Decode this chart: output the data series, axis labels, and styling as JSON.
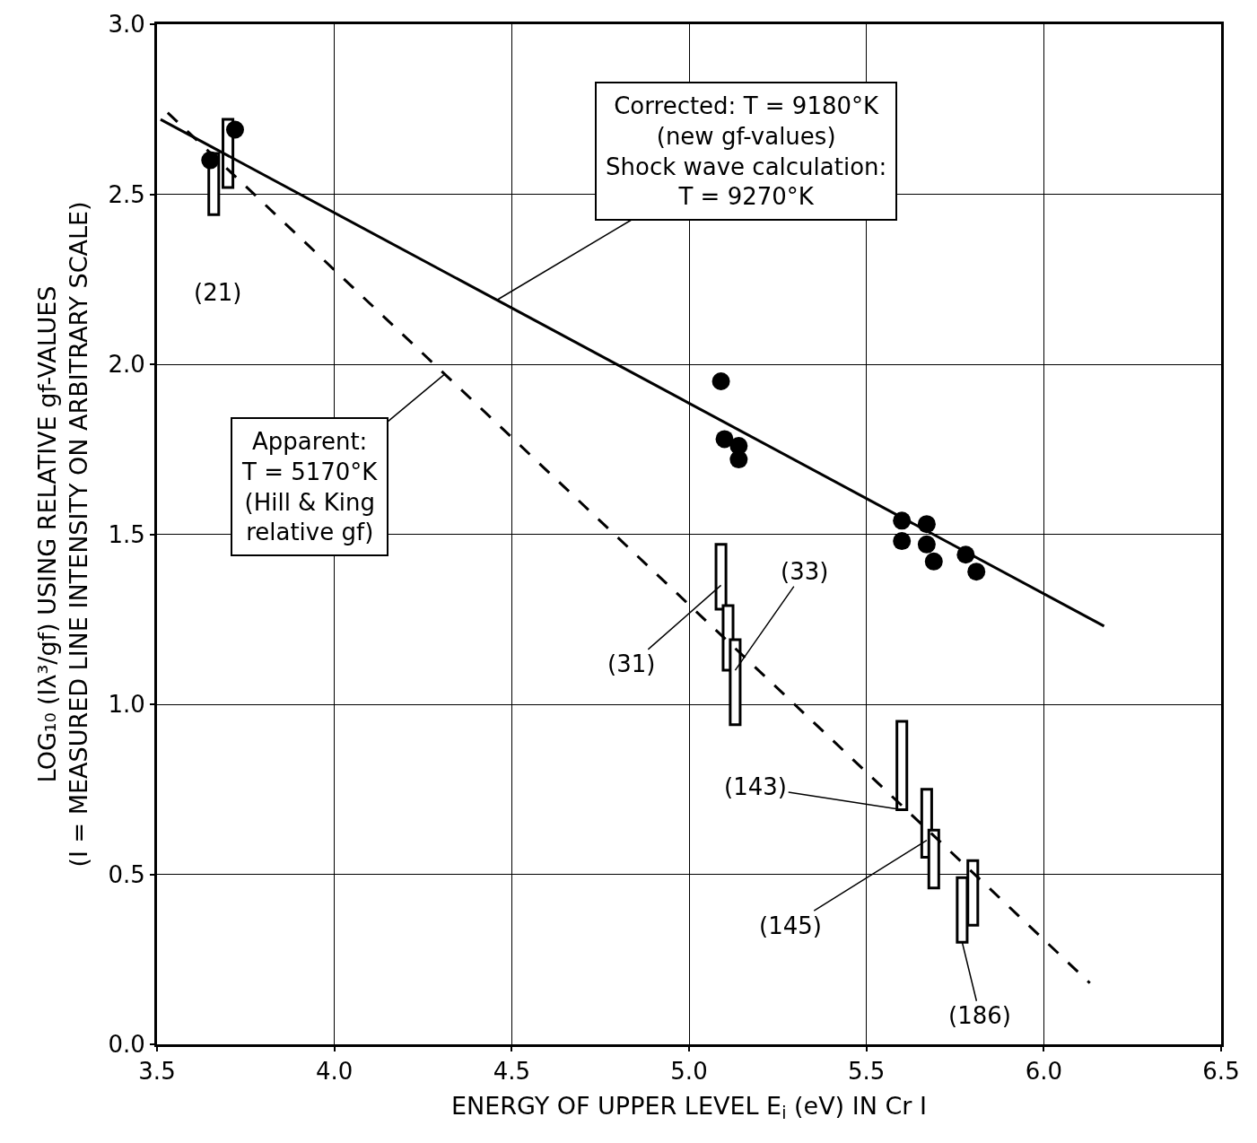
{
  "chart_data": {
    "type": "scatter",
    "xlabel": "ENERGY OF UPPER LEVEL E$_{i}$ (eV) IN Cr I",
    "ylabel": "LOG₁₀ (Iλ³/gf) USING RELATIVE gf-VALUES\n(I = MEASURED LINE INTENSITY ON ARBITRARY SCALE)",
    "xlim": [
      3.5,
      6.5
    ],
    "ylim": [
      0,
      3
    ],
    "xticks": [
      3.5,
      {
        "value": 4,
        "label": "4.0"
      },
      4.5,
      {
        "value": 5,
        "label": "5.0"
      },
      5.5,
      {
        "value": 6,
        "label": "6.0"
      },
      6.5
    ],
    "yticks": [
      {
        "value": 0,
        "label": "0.0"
      },
      0.5,
      {
        "value": 1,
        "label": "1.0"
      },
      1.5,
      {
        "value": 2,
        "label": "2.0"
      },
      2.5,
      {
        "value": 3,
        "label": "3.0"
      }
    ],
    "grid": true,
    "series": [
      {
        "color": "#000000",
        "marker": "circle",
        "x": [
          3.72,
          3.65,
          5.09,
          5.1,
          5.14,
          5.14,
          5.6,
          5.6,
          5.67,
          5.67,
          5.69,
          5.78,
          5.81
        ],
        "values": [
          2.69,
          2.6,
          1.95,
          1.78,
          1.76,
          1.72,
          1.54,
          1.48,
          1.53,
          1.47,
          1.42,
          1.44,
          1.39
        ]
      },
      {
        "type": "bar",
        "color": "#ffffff",
        "x": [
          3.66,
          3.7,
          5.09,
          5.11,
          5.13,
          5.6,
          5.67,
          5.69,
          5.77,
          5.8
        ],
        "base": [
          2.44,
          2.52,
          1.28,
          1.1,
          0.94,
          0.69,
          0.55,
          0.46,
          0.3,
          0.35
        ],
        "values": [
          0.18,
          0.2,
          0.19,
          0.19,
          0.25,
          0.26,
          0.2,
          0.17,
          0.19,
          0.19
        ]
      },
      {
        "type": "line",
        "color": "#000000",
        "line_style": "solid",
        "x": [
          3.51,
          6.17
        ],
        "values": [
          2.72,
          1.23
        ]
      },
      {
        "type": "line",
        "color": "#000000",
        "line_style": "dashed",
        "x": [
          3.53,
          6.13
        ],
        "values": [
          2.74,
          0.18
        ]
      }
    ],
    "annotations": [
      {
        "text": "Corrected: T = 9180°K\n(new gf-values)\nShock wave calculation:\nT = 9270°K",
        "x": 4.46,
        "y": 2.19
      },
      {
        "text": "Apparent:\nT = 5170°K\n(Hill & King\nrelative gf)",
        "x": 4.31,
        "y": 1.97
      },
      {
        "text": "(21)",
        "x": 3.66,
        "y": 2.44
      },
      {
        "text": "(31)",
        "x": 5.09,
        "y": 1.35
      },
      {
        "text": "(33)",
        "x": 5.13,
        "y": 1.1
      },
      {
        "text": "(143)",
        "x": 5.6,
        "y": 0.69
      },
      {
        "text": "(145)",
        "x": 5.67,
        "y": 0.6
      },
      {
        "text": "(186)",
        "x": 5.77,
        "y": 0.3
      }
    ]
  }
}
